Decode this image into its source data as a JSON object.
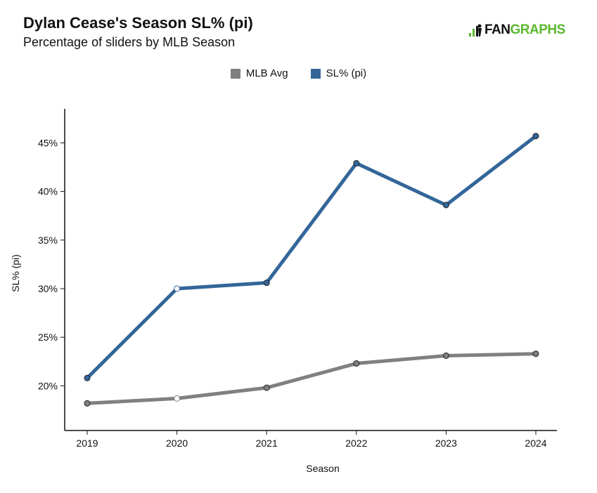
{
  "header": {
    "title": "Dylan Cease's Season SL% (pi)",
    "subtitle": "Percentage of sliders by MLB Season"
  },
  "logo": {
    "text_fan": "FAN",
    "text_graphs": "GRAPHS"
  },
  "chart_data": {
    "type": "line",
    "title": "Dylan Cease's Season SL% (pi)",
    "subtitle": "Percentage of sliders by MLB Season",
    "xlabel": "Season",
    "ylabel": "SL% (pi)",
    "categories": [
      "2019",
      "2020",
      "2021",
      "2022",
      "2023",
      "2024"
    ],
    "ylim": [
      15.4,
      48.5
    ],
    "yticks": [
      20,
      25,
      30,
      35,
      40,
      45
    ],
    "ytick_labels": [
      "20%",
      "25%",
      "30%",
      "35%",
      "40%",
      "45%"
    ],
    "legend_position": "top-center",
    "grid": false,
    "series": [
      {
        "name": "MLB Avg",
        "color": "#808080",
        "values": [
          18.2,
          18.7,
          19.8,
          22.3,
          23.1,
          23.3
        ]
      },
      {
        "name": "SL% (pi)",
        "color": "#336699",
        "values": [
          20.8,
          30.0,
          30.6,
          42.9,
          38.6,
          45.7
        ]
      }
    ],
    "hollow_points": [
      "2020"
    ]
  }
}
